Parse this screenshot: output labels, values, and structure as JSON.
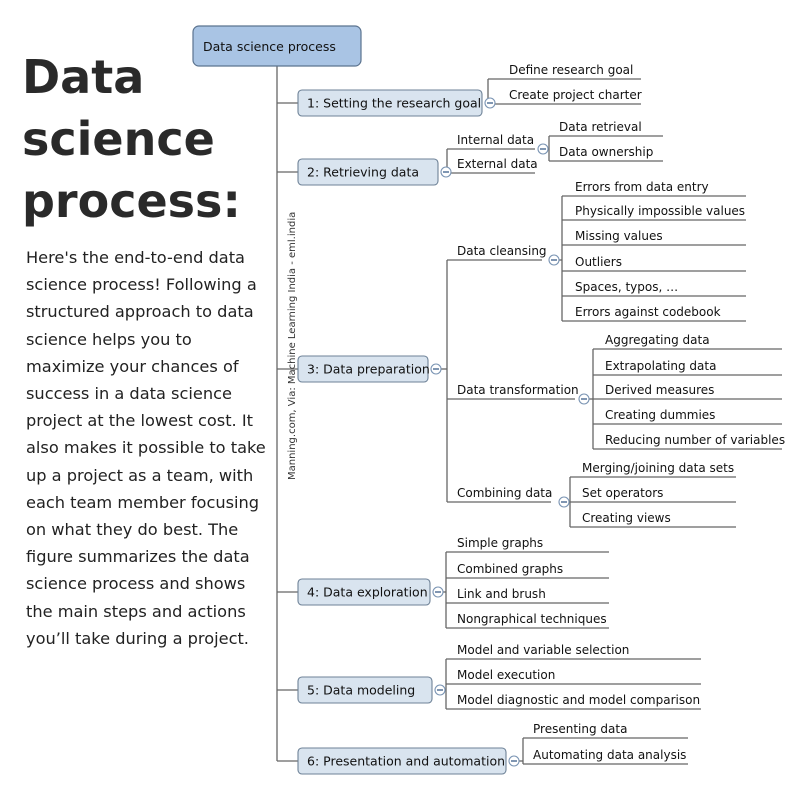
{
  "title_lines": [
    "Data",
    "science",
    "process:"
  ],
  "description": "Here's the end-to-end data science process! Following a structured approach to data science helps you to maximize your chances of success in a data science project at the lowest cost. It also makes it possible to take up a project as a team, with each team member focusing on what they do best. The figure summarizes the data science process and shows the main steps and actions you’ll take during a project.",
  "credit": "Manning.com, Via: Machine Learning India - eml.india",
  "diagram": {
    "root": "Data science process",
    "steps": [
      {
        "label": "1: Setting the research goal",
        "groups": [
          {
            "items": [
              "Define research goal",
              "Create project charter"
            ]
          }
        ]
      },
      {
        "label": "2: Retrieving data",
        "groups": [
          {
            "label": "Internal data",
            "items": [
              "Data retrieval",
              "Data ownership"
            ]
          },
          {
            "label": "External data",
            "items": []
          }
        ]
      },
      {
        "label": "3: Data preparation",
        "groups": [
          {
            "label": "Data cleansing",
            "items": [
              "Errors from data entry",
              "Physically impossible values",
              "Missing values",
              "Outliers",
              "Spaces, typos, …",
              "Errors against codebook"
            ]
          },
          {
            "label": "Data transformation",
            "items": [
              "Aggregating data",
              "Extrapolating data",
              "Derived measures",
              "Creating dummies",
              "Reducing number of variables"
            ]
          },
          {
            "label": "Combining data",
            "items": [
              "Merging/joining data sets",
              "Set operators",
              "Creating views"
            ]
          }
        ]
      },
      {
        "label": "4: Data exploration",
        "groups": [
          {
            "items": [
              "Simple graphs",
              "Combined graphs",
              "Link and brush",
              "Nongraphical techniques"
            ]
          }
        ]
      },
      {
        "label": "5: Data modeling",
        "groups": [
          {
            "items": [
              "Model and variable selection",
              "Model execution",
              "Model diagnostic and model comparison"
            ]
          }
        ]
      },
      {
        "label": "6: Presentation and automation",
        "groups": [
          {
            "items": [
              "Presenting data",
              "Automating data analysis"
            ]
          }
        ]
      }
    ]
  }
}
